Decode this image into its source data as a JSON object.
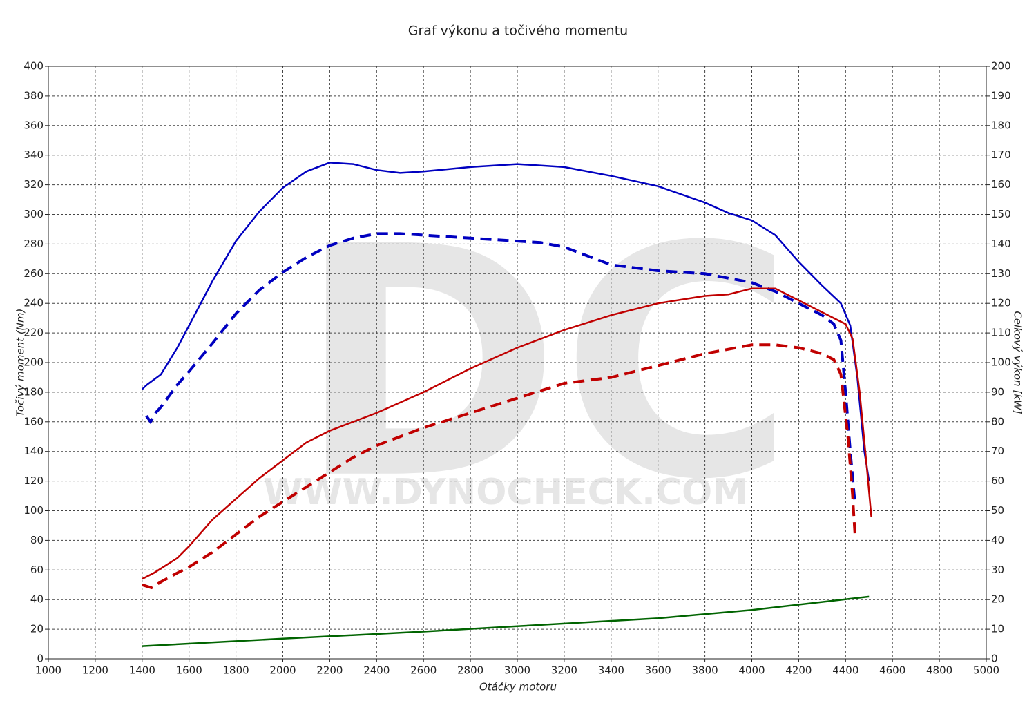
{
  "chart_data": {
    "type": "line",
    "title": "Graf výkonu a točivého momentu",
    "xlabel": "Otáčky motoru",
    "ylabel": "Točivý moment (Nm)",
    "y2label": "Celkový výkon [kW]",
    "watermark": [
      "DC",
      "WWW.DYNOCHECK.COM"
    ],
    "grid": true,
    "xlim": [
      1000,
      5000
    ],
    "xticks": [
      1000,
      1200,
      1400,
      1600,
      1800,
      2000,
      2200,
      2400,
      2600,
      2800,
      3000,
      3200,
      3400,
      3600,
      3800,
      4000,
      4200,
      4400,
      4600,
      4800,
      5000
    ],
    "ylim": [
      0,
      400
    ],
    "yticks": [
      0,
      20,
      40,
      60,
      80,
      100,
      120,
      140,
      160,
      180,
      200,
      220,
      240,
      260,
      280,
      300,
      320,
      340,
      360,
      380,
      400
    ],
    "y2lim": [
      0,
      200
    ],
    "y2ticks": [
      0,
      10,
      20,
      30,
      40,
      50,
      60,
      70,
      80,
      90,
      100,
      110,
      120,
      130,
      140,
      150,
      160,
      170,
      180,
      190,
      200
    ],
    "series": [
      {
        "color": "#0000c0",
        "dash": false,
        "axis": "y",
        "x": [
          1400,
          1420,
          1480,
          1550,
          1600,
          1700,
          1800,
          1900,
          2000,
          2100,
          2200,
          2300,
          2400,
          2500,
          2600,
          2800,
          3000,
          3200,
          3400,
          3600,
          3800,
          3900,
          4000,
          4100,
          4200,
          4300,
          4380,
          4420,
          4450,
          4480,
          4500
        ],
        "values": [
          182,
          185,
          192,
          210,
          225,
          255,
          282,
          302,
          318,
          329,
          335,
          334,
          330,
          328,
          329,
          332,
          334,
          332,
          326,
          319,
          308,
          301,
          296,
          286,
          268,
          252,
          240,
          225,
          190,
          140,
          120
        ]
      },
      {
        "color": "#0000c0",
        "dash": true,
        "axis": "y",
        "x": [
          1418,
          1436,
          1457,
          1480,
          1550,
          1600,
          1700,
          1800,
          1900,
          2000,
          2100,
          2200,
          2300,
          2400,
          2500,
          2600,
          2800,
          3000,
          3100,
          3200,
          3300,
          3400,
          3600,
          3800,
          4000,
          4100,
          4200,
          4300,
          4350,
          4380,
          4400,
          4420,
          4440
        ],
        "values": [
          164,
          160,
          166,
          170,
          185,
          194,
          213,
          233,
          249,
          261,
          271,
          279,
          284,
          287,
          287,
          286,
          284,
          282,
          281,
          278,
          272,
          266,
          262,
          260,
          254,
          248,
          240,
          232,
          226,
          215,
          180,
          140,
          105
        ]
      },
      {
        "color": "#c00000",
        "dash": false,
        "axis": "y2",
        "x": [
          1400,
          1450,
          1550,
          1600,
          1700,
          1800,
          1900,
          2000,
          2100,
          2200,
          2400,
          2600,
          2800,
          3000,
          3200,
          3400,
          3600,
          3800,
          3900,
          4000,
          4100,
          4200,
          4300,
          4400,
          4430,
          4460,
          4490,
          4510
        ],
        "values": [
          27,
          29,
          34,
          38,
          47,
          54,
          61,
          67,
          73,
          77,
          83,
          90,
          98,
          105,
          111,
          116,
          120,
          122.5,
          123,
          125,
          125,
          121,
          117,
          113,
          108,
          90,
          65,
          48
        ]
      },
      {
        "color": "#c00000",
        "dash": true,
        "axis": "y2",
        "x": [
          1400,
          1440,
          1480,
          1550,
          1600,
          1700,
          1800,
          1900,
          2000,
          2100,
          2200,
          2300,
          2400,
          2600,
          2800,
          3000,
          3200,
          3400,
          3600,
          3800,
          4000,
          4100,
          4200,
          4300,
          4350,
          4380,
          4410,
          4430,
          4440
        ],
        "values": [
          25,
          24,
          26,
          29,
          31,
          36,
          42,
          48,
          53,
          58,
          63,
          68,
          72,
          78,
          83,
          88,
          93,
          95,
          99,
          103,
          106,
          106,
          105,
          103,
          101,
          96,
          75,
          55,
          42
        ]
      },
      {
        "color": "#006400",
        "dash": false,
        "axis": "y2",
        "x": [
          1400,
          2000,
          2600,
          3000,
          3600,
          4000,
          4500
        ],
        "values": [
          4.3,
          6.8,
          9.2,
          11,
          13.7,
          16.5,
          21
        ]
      }
    ]
  }
}
